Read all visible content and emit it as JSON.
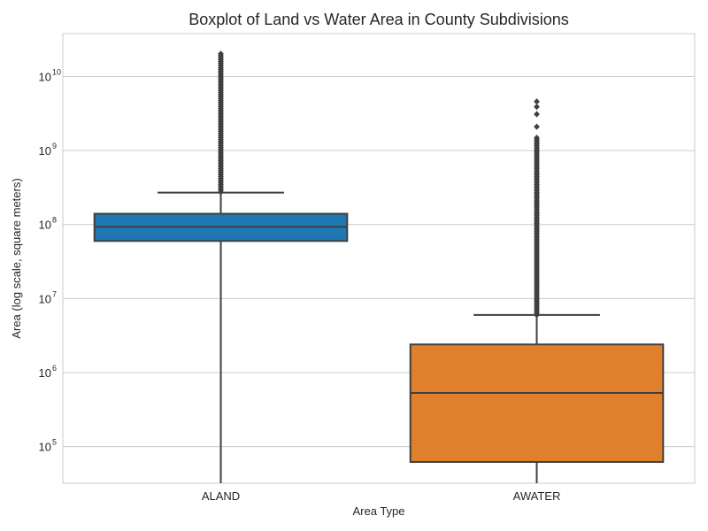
{
  "chart_data": {
    "type": "box",
    "title": "Boxplot of Land vs Water Area in County Subdivisions",
    "xlabel": "Area Type",
    "ylabel": "Area (log scale, square meters)",
    "yscale": "log",
    "ylim": [
      32000,
      38000000000
    ],
    "grid": true,
    "y_ticks": [
      {
        "value": 100000,
        "base": "10",
        "exp": "5"
      },
      {
        "value": 1000000,
        "base": "10",
        "exp": "6"
      },
      {
        "value": 10000000,
        "base": "10",
        "exp": "7"
      },
      {
        "value": 100000000,
        "base": "10",
        "exp": "8"
      },
      {
        "value": 1000000000,
        "base": "10",
        "exp": "9"
      },
      {
        "value": 10000000000,
        "base": "10",
        "exp": "10"
      }
    ],
    "categories": [
      "ALAND",
      "AWATER"
    ],
    "boxes": [
      {
        "name": "ALAND",
        "color": "#1f77b4",
        "whisker_low": 32000,
        "q1": 60000000,
        "median": 93000000,
        "q3": 140000000,
        "whisker_high": 270000000,
        "outlier_range": [
          275000000,
          21000000000
        ]
      },
      {
        "name": "AWATER",
        "color": "#e07f2c",
        "whisker_low": 32000,
        "q1": 62000,
        "median": 530000,
        "q3": 2400000,
        "whisker_high": 6000000,
        "outlier_range": [
          6000000,
          1500000000
        ],
        "extra_outliers": [
          2100000000,
          3100000000,
          3900000000,
          4600000000
        ]
      }
    ]
  }
}
